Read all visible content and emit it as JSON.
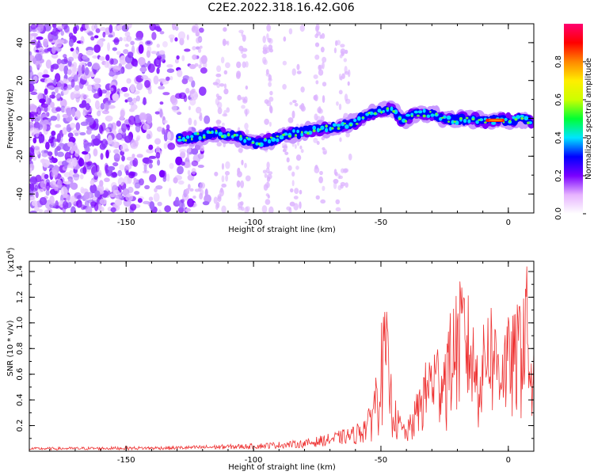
{
  "title": "C2E2.2022.318.16.42.G06",
  "chart_data": [
    {
      "type": "heatmap",
      "xlabel": "Height of straight line (km)",
      "ylabel": "Frequency (Hz)",
      "xlim": [
        -188,
        10
      ],
      "ylim": [
        -50,
        50
      ],
      "x_ticks": [
        -150,
        -100,
        -50,
        0
      ],
      "y_ticks": [
        -40,
        -20,
        0,
        20,
        40
      ],
      "colorbar": {
        "label": "Normalized spectral amplitude",
        "range": [
          0,
          1
        ],
        "ticks": [
          0.0,
          0.2,
          0.4,
          0.6,
          0.8
        ],
        "colors": [
          "#ffffff",
          "#e6b3ff",
          "#7a00ff",
          "#0000ff",
          "#00e5ff",
          "#00ff33",
          "#ccff00",
          "#ffee00",
          "#ff8800",
          "#ff0000",
          "#ff0070"
        ]
      },
      "ridge": {
        "x": [
          -129,
          -125,
          -120,
          -115,
          -110,
          -105,
          -100,
          -95,
          -90,
          -85,
          -80,
          -75,
          -70,
          -65,
          -60,
          -55,
          -50,
          -45,
          -42,
          -40,
          -35,
          -30,
          -25,
          -20,
          -15,
          -10,
          -5,
          0,
          5,
          9
        ],
        "y": [
          -11,
          -10,
          -9,
          -8,
          -9,
          -10,
          -13,
          -12,
          -10,
          -8,
          -7,
          -6,
          -5,
          -4,
          -2,
          2,
          4,
          5,
          -1,
          0,
          3,
          2,
          0,
          -1,
          0,
          -2,
          -1,
          -1,
          0,
          -2
        ]
      }
    },
    {
      "type": "line",
      "xlabel": "Height of straight line (km)",
      "ylabel": "SNR (10 * v/v)",
      "y_multiplier": "(x10",
      "y_multiplier_exp": "4",
      "y_multiplier_close": ")",
      "xlim": [
        -188,
        10
      ],
      "ylim": [
        0,
        1.48
      ],
      "x_ticks": [
        -150,
        -100,
        -50,
        0
      ],
      "y_ticks": [
        0.2,
        0.4,
        0.6,
        0.8,
        1.0,
        1.2,
        1.4
      ],
      "color": "#ee3333",
      "envelope": {
        "x": [
          -188,
          -130,
          -100,
          -80,
          -70,
          -60,
          -55,
          -52,
          -50,
          -48,
          -46,
          -44,
          -42,
          -40,
          -38,
          -35,
          -32,
          -30,
          -25,
          -20,
          -17,
          -15,
          -12,
          -10,
          -8,
          -5,
          -3,
          0,
          3,
          5,
          7,
          8,
          9,
          10
        ],
        "y": [
          0.03,
          0.04,
          0.06,
          0.09,
          0.14,
          0.2,
          0.3,
          0.6,
          0.95,
          1.1,
          0.6,
          0.35,
          0.25,
          0.2,
          0.3,
          0.5,
          0.7,
          0.8,
          0.85,
          1.25,
          1.3,
          1.1,
          0.8,
          0.9,
          1.25,
          1.0,
          0.95,
          1.0,
          1.05,
          1.25,
          1.48,
          1.1,
          0.7,
          0.8
        ]
      }
    }
  ]
}
